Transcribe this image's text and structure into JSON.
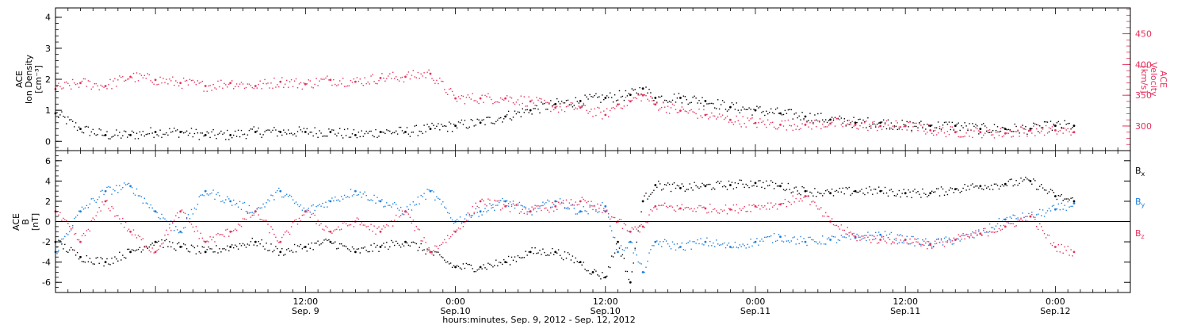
{
  "colors": {
    "density": "#000000",
    "velocity": "#e8305c",
    "bx": "#000000",
    "by": "#1a7fe0",
    "bz": "#e8305c"
  },
  "xaxis": {
    "title": "hours:minutes, Sep.  9, 2012 - Sep. 12, 2012",
    "range_hours": [
      -8,
      78
    ],
    "ticks": [
      {
        "hours": 12,
        "time": "12:00",
        "date": "Sep. 9"
      },
      {
        "hours": 24,
        "time": "0:00",
        "date": "Sep.10"
      },
      {
        "hours": 36,
        "time": "12:00",
        "date": "Sep.10"
      },
      {
        "hours": 48,
        "time": "0:00",
        "date": "Sep.11"
      },
      {
        "hours": 60,
        "time": "12:00",
        "date": "Sep.11"
      },
      {
        "hours": 72,
        "time": "0:00",
        "date": "Sep.12"
      }
    ]
  },
  "chart_data": [
    {
      "type": "scatter",
      "panel": "top",
      "ylabel_left": [
        "ACE",
        "Ion Density",
        "[cm⁻³]"
      ],
      "ylabel_right": [
        "ACE",
        "Velocity",
        "[km/s]"
      ],
      "ylim_left": [
        -0.3,
        4.3
      ],
      "yticks_left": [
        0,
        1,
        2,
        3,
        4
      ],
      "ylim_right": [
        260,
        492
      ],
      "yticks_right": [
        300,
        350,
        400,
        450
      ],
      "series": [
        {
          "axis": "left",
          "color": "#000000",
          "x_hours": [
            -8,
            -6,
            -4,
            -2,
            0,
            2,
            4,
            6,
            8,
            10,
            12,
            14,
            16,
            18,
            20,
            22,
            24,
            26,
            28,
            30,
            32,
            34,
            36,
            38,
            39,
            40,
            42,
            44,
            46,
            48,
            50,
            52,
            54,
            56,
            58,
            60,
            62,
            64,
            66,
            68,
            70,
            72,
            73.5
          ],
          "values": [
            0.9,
            0.4,
            0.2,
            0.2,
            0.3,
            0.3,
            0.2,
            0.2,
            0.3,
            0.3,
            0.3,
            0.3,
            0.2,
            0.3,
            0.3,
            0.4,
            0.5,
            0.6,
            0.8,
            1.0,
            1.2,
            1.3,
            1.4,
            1.5,
            1.7,
            1.4,
            1.4,
            1.3,
            1.1,
            1.0,
            0.9,
            0.8,
            0.7,
            0.6,
            0.6,
            0.5,
            0.5,
            0.5,
            0.4,
            0.4,
            0.4,
            0.5,
            0.5
          ]
        },
        {
          "axis": "right",
          "color": "#e8305c",
          "x_hours": [
            -8,
            -6,
            -4,
            -2,
            0,
            2,
            4,
            6,
            8,
            10,
            12,
            14,
            16,
            18,
            20,
            22,
            24,
            26,
            28,
            30,
            32,
            34,
            36,
            37,
            38,
            39,
            40,
            42,
            44,
            46,
            48,
            50,
            52,
            54,
            56,
            58,
            60,
            62,
            64,
            66,
            68,
            70,
            72,
            73.5
          ],
          "values": [
            360,
            370,
            365,
            380,
            375,
            370,
            365,
            370,
            365,
            372,
            368,
            375,
            372,
            378,
            380,
            385,
            345,
            345,
            345,
            340,
            330,
            330,
            318,
            335,
            340,
            350,
            335,
            325,
            318,
            310,
            305,
            302,
            302,
            304,
            302,
            300,
            300,
            293,
            290,
            290,
            288,
            293,
            293,
            290
          ]
        }
      ]
    },
    {
      "type": "scatter",
      "panel": "bottom",
      "ylabel": [
        "ACE",
        "B",
        "[nT]"
      ],
      "ylim": [
        -7,
        7
      ],
      "yticks": [
        -6,
        -4,
        -2,
        0,
        2,
        4,
        6
      ],
      "legend": [
        "Bx",
        "By",
        "Bz"
      ],
      "legend_position": "right",
      "series": [
        {
          "name": "Bx",
          "color": "#000000",
          "x_hours": [
            -8,
            -6,
            -4,
            -2,
            0,
            2,
            4,
            6,
            8,
            10,
            12,
            14,
            16,
            18,
            20,
            22,
            24,
            26,
            28,
            30,
            32,
            34,
            35,
            36,
            37,
            38,
            39,
            40,
            42,
            44,
            46,
            48,
            50,
            52,
            54,
            56,
            58,
            60,
            62,
            64,
            66,
            68,
            70,
            72,
            73.5
          ],
          "values": [
            -2,
            -3.5,
            -4,
            -3,
            -2,
            -2.5,
            -3,
            -2.5,
            -2,
            -3,
            -2.5,
            -2,
            -3,
            -2.5,
            -2,
            -3,
            -4.5,
            -4.5,
            -4,
            -3,
            -3,
            -4,
            -5,
            -5.5,
            -2,
            -6,
            2,
            3.6,
            3.3,
            3.5,
            3.6,
            3.8,
            3.5,
            3.0,
            2.8,
            3.0,
            3.0,
            2.8,
            2.8,
            3.2,
            3.5,
            3.7,
            4.0,
            2.5,
            2.0
          ]
        },
        {
          "name": "By",
          "color": "#1a7fe0",
          "x_hours": [
            -8,
            -6,
            -4,
            -2,
            0,
            2,
            4,
            6,
            8,
            10,
            12,
            14,
            16,
            18,
            20,
            22,
            24,
            26,
            28,
            30,
            32,
            34,
            36,
            37,
            38,
            39,
            40,
            42,
            44,
            46,
            48,
            50,
            52,
            54,
            56,
            58,
            60,
            62,
            64,
            66,
            68,
            70,
            72,
            73.5
          ],
          "values": [
            -3,
            1,
            3,
            3.5,
            1,
            -1,
            3,
            2,
            1,
            3,
            1,
            2,
            3,
            2,
            1,
            3,
            0,
            1,
            2,
            1,
            2,
            1,
            1.5,
            -3,
            -2,
            -5,
            -2,
            -2.5,
            -2,
            -2.5,
            -2,
            -1.5,
            -2,
            -1.8,
            -1.6,
            -1.3,
            -1.8,
            -2.2,
            -1.8,
            -1.2,
            0.2,
            0.5,
            1.2,
            1.8
          ]
        },
        {
          "name": "Bz",
          "color": "#e8305c",
          "x_hours": [
            -8,
            -6,
            -4,
            -2,
            0,
            2,
            4,
            6,
            8,
            10,
            12,
            14,
            16,
            18,
            20,
            22,
            24,
            26,
            28,
            30,
            32,
            34,
            36,
            37,
            38,
            39,
            40,
            42,
            44,
            46,
            48,
            50,
            52,
            54,
            56,
            58,
            60,
            62,
            64,
            66,
            68,
            70,
            72,
            73.5
          ],
          "values": [
            1,
            -2,
            2,
            -1,
            -3,
            1,
            -2,
            -1,
            1,
            -2,
            1,
            -1,
            0,
            -1,
            1,
            -3,
            -1,
            2,
            1.5,
            1,
            1.5,
            2,
            1,
            0,
            -1,
            -0.5,
            1.5,
            1.3,
            1.3,
            1.2,
            1.5,
            1.7,
            2.5,
            0,
            -1.5,
            -1.8,
            -1.8,
            -2.3,
            -1.8,
            -1.2,
            -0.5,
            0.5,
            -2.5,
            -3
          ]
        }
      ]
    }
  ]
}
